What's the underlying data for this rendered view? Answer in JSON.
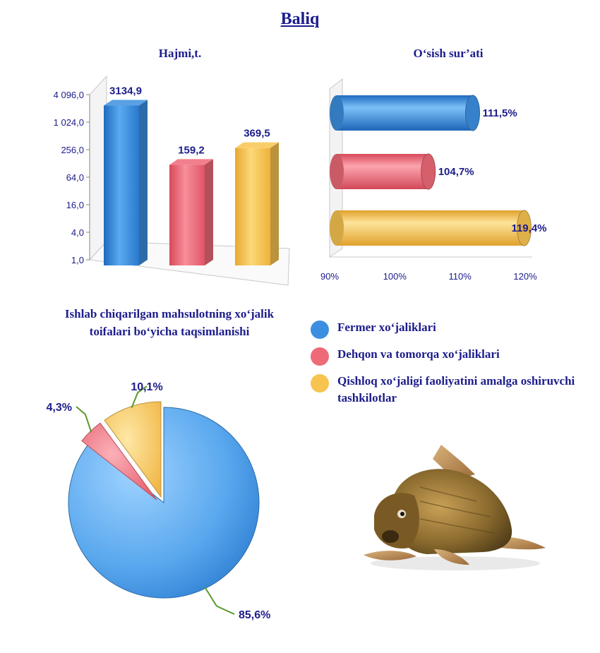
{
  "page_title": "Baliq",
  "colors": {
    "blue": "#3c8fe0",
    "red": "#ee6a78",
    "yellow": "#f8c450",
    "text": "#1c1c8c",
    "label_line": "#5a9a28"
  },
  "chart_data": [
    {
      "type": "bar",
      "title": "Hajmi,t.",
      "scale": "log2",
      "ylim": [
        1,
        4096
      ],
      "yticks": [
        "1,0",
        "4,0",
        "16,0",
        "64,0",
        "256,0",
        "1 024,0",
        "4 096,0"
      ],
      "ytick_values": [
        1,
        4,
        16,
        64,
        256,
        1024,
        4096
      ],
      "values": [
        3134.9,
        159.2,
        369.5
      ],
      "value_labels": [
        "3134,9",
        "159,2",
        "369,5"
      ],
      "series_colors": [
        "blue",
        "red",
        "yellow"
      ]
    },
    {
      "type": "bar",
      "orientation": "horizontal",
      "title": "O‘sish sur’ati",
      "xlim": [
        90,
        120
      ],
      "xticks": [
        "90%",
        "100%",
        "110%",
        "120%"
      ],
      "xtick_values": [
        90,
        100,
        110,
        120
      ],
      "values": [
        111.5,
        104.7,
        119.4
      ],
      "value_labels": [
        "111,5%",
        "104,7%",
        "119,4%"
      ],
      "series_colors": [
        "blue",
        "red",
        "yellow"
      ]
    },
    {
      "type": "pie",
      "title": "Ishlab chiqarilgan mahsulotning xo‘jalik toifalari bo‘yicha taqsimlanishi",
      "values": [
        85.6,
        4.3,
        10.1
      ],
      "value_labels": [
        "85,6%",
        "4,3%",
        "10,1%"
      ],
      "series_colors": [
        "blue",
        "red",
        "yellow"
      ]
    }
  ],
  "legend": {
    "items": [
      {
        "label": "Fermer xo‘jaliklari",
        "color": "blue"
      },
      {
        "label": "Dehqon va tomorqa xo‘jaliklari",
        "color": "red"
      },
      {
        "label": "Qishloq xo‘jaligi faoliyatini amalga oshiruvchi tashkilotlar",
        "color": "yellow"
      }
    ]
  },
  "image": {
    "icon": "carp-fish-photo"
  }
}
